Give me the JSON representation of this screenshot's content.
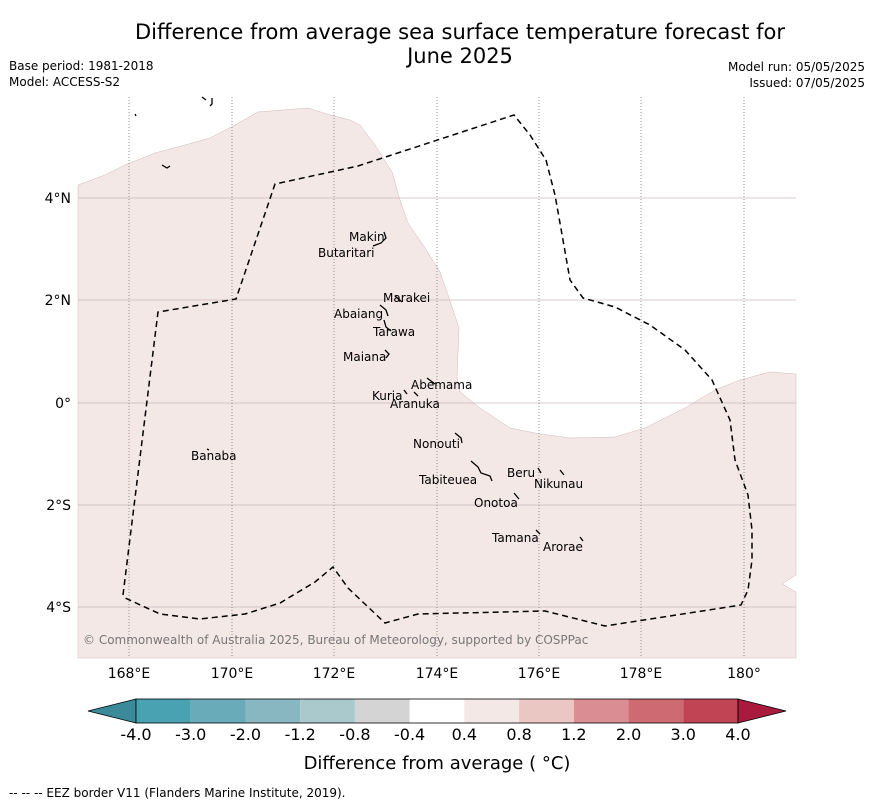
{
  "header": {
    "title_line1": "Difference from average sea surface temperature forecast for",
    "title_line2": "June 2025",
    "base_period": "Base period: 1981-2018",
    "model": "Model: ACCESS-S2",
    "model_run": "Model run: 05/05/2025",
    "issued": "Issued: 07/05/2025"
  },
  "map": {
    "lon_ticks": [
      "168°E",
      "170°E",
      "172°E",
      "174°E",
      "176°E",
      "178°E",
      "180°"
    ],
    "lat_ticks": [
      "4°N",
      "2°N",
      "0°",
      "2°S",
      "4°S"
    ],
    "land_color": "#f4e8e7",
    "credit": "© Commonwealth of Australia 2025, Bureau of Meteorology, supported by COSPPac",
    "places": [
      "Makin",
      "Butaritari",
      "Marakei",
      "Abaiang",
      "Tarawa",
      "Maiana",
      "Abemama",
      "Kuria",
      "Aranuka",
      "Nonouti",
      "Banaba",
      "Beru",
      "Nikunau",
      "Tabiteuea",
      "Onotoa",
      "Tamana",
      "Arorae"
    ]
  },
  "colorbar": {
    "tick_labels": [
      "-4.0",
      "-3.0",
      "-2.0",
      "-1.2",
      "-0.8",
      "-0.4",
      "0.4",
      "0.8",
      "1.2",
      "2.0",
      "3.0",
      "4.0"
    ],
    "colors": [
      "#3a8a99",
      "#49a2b2",
      "#69abb9",
      "#88b6c1",
      "#a9c9cd",
      "#d4d4d4",
      "#ffffff",
      "#f4e8e7",
      "#ebc7c3",
      "#da8e93",
      "#cd6a72",
      "#c14455",
      "#a81b3d"
    ],
    "label": "Difference from average ( °C)"
  },
  "footnote": "--  --  -- EEZ border V11 (Flanders Marine Institute, 2019)."
}
